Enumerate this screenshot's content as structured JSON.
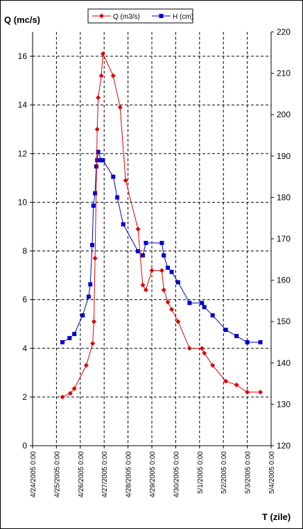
{
  "chart_data": {
    "type": "line",
    "y_left_label": "Q (mc/s)",
    "y_right_label": "",
    "x_label": "T (zile)",
    "x_ticks": [
      "4/24/2005 0:00",
      "4/25/2005 0:00",
      "4/26/2005 0:00",
      "4/27/2005 0:00",
      "4/28/2005 0:00",
      "4/29/2005 0:00",
      "4/30/2005 0:00",
      "5/1/2005 0:00",
      "5/2/2005 0:00",
      "5/3/2005 0:00",
      "5/4/2005 0:00"
    ],
    "x_range_days": [
      0,
      10
    ],
    "y_left_range": [
      0,
      17
    ],
    "y_left_ticks": [
      0,
      2,
      4,
      6,
      8,
      10,
      12,
      14,
      16
    ],
    "y_right_range": [
      120,
      220
    ],
    "y_right_ticks": [
      120,
      130,
      140,
      150,
      160,
      170,
      180,
      190,
      200,
      210,
      220
    ],
    "grid": true,
    "legend_position": "top",
    "series": [
      {
        "name": "Q (m3/s)",
        "axis": "left",
        "color": "#e00000",
        "marker": "diamond",
        "x": [
          1.25,
          1.58,
          1.75,
          2.25,
          2.52,
          2.57,
          2.62,
          2.71,
          2.75,
          2.88,
          2.95,
          3.38,
          3.67,
          3.9,
          4.42,
          4.62,
          4.75,
          5.0,
          5.42,
          5.5,
          5.67,
          5.83,
          6.1,
          6.58,
          7.1,
          7.2,
          7.55,
          8.1,
          8.55,
          9.0,
          9.55
        ],
        "y": [
          2.0,
          2.15,
          2.35,
          3.3,
          4.2,
          5.1,
          7.7,
          13.0,
          14.3,
          15.2,
          16.1,
          15.2,
          13.9,
          10.9,
          8.9,
          6.6,
          6.4,
          7.2,
          7.2,
          6.4,
          5.9,
          5.6,
          5.1,
          4.0,
          4.0,
          3.8,
          3.3,
          2.65,
          2.5,
          2.2,
          2.2
        ]
      },
      {
        "name": "H (cm)",
        "axis": "right",
        "color": "#0000cc",
        "marker": "square",
        "x": [
          1.25,
          1.55,
          1.75,
          2.1,
          2.35,
          2.42,
          2.5,
          2.55,
          2.62,
          2.67,
          2.71,
          2.75,
          2.88,
          2.95,
          3.38,
          3.55,
          3.8,
          4.42,
          4.62,
          4.75,
          5.42,
          5.5,
          5.67,
          5.83,
          6.1,
          6.58,
          7.1,
          7.2,
          7.55,
          8.1,
          8.55,
          9.0,
          9.55
        ],
        "y": [
          145,
          146,
          147,
          151.5,
          156,
          159,
          168.5,
          178,
          181,
          187.5,
          189,
          191,
          189,
          189,
          185,
          180,
          173.5,
          167,
          166,
          169,
          169,
          166,
          163,
          162,
          159.5,
          154.5,
          154.5,
          153.5,
          151.5,
          148,
          146.5,
          145,
          145
        ]
      }
    ]
  }
}
